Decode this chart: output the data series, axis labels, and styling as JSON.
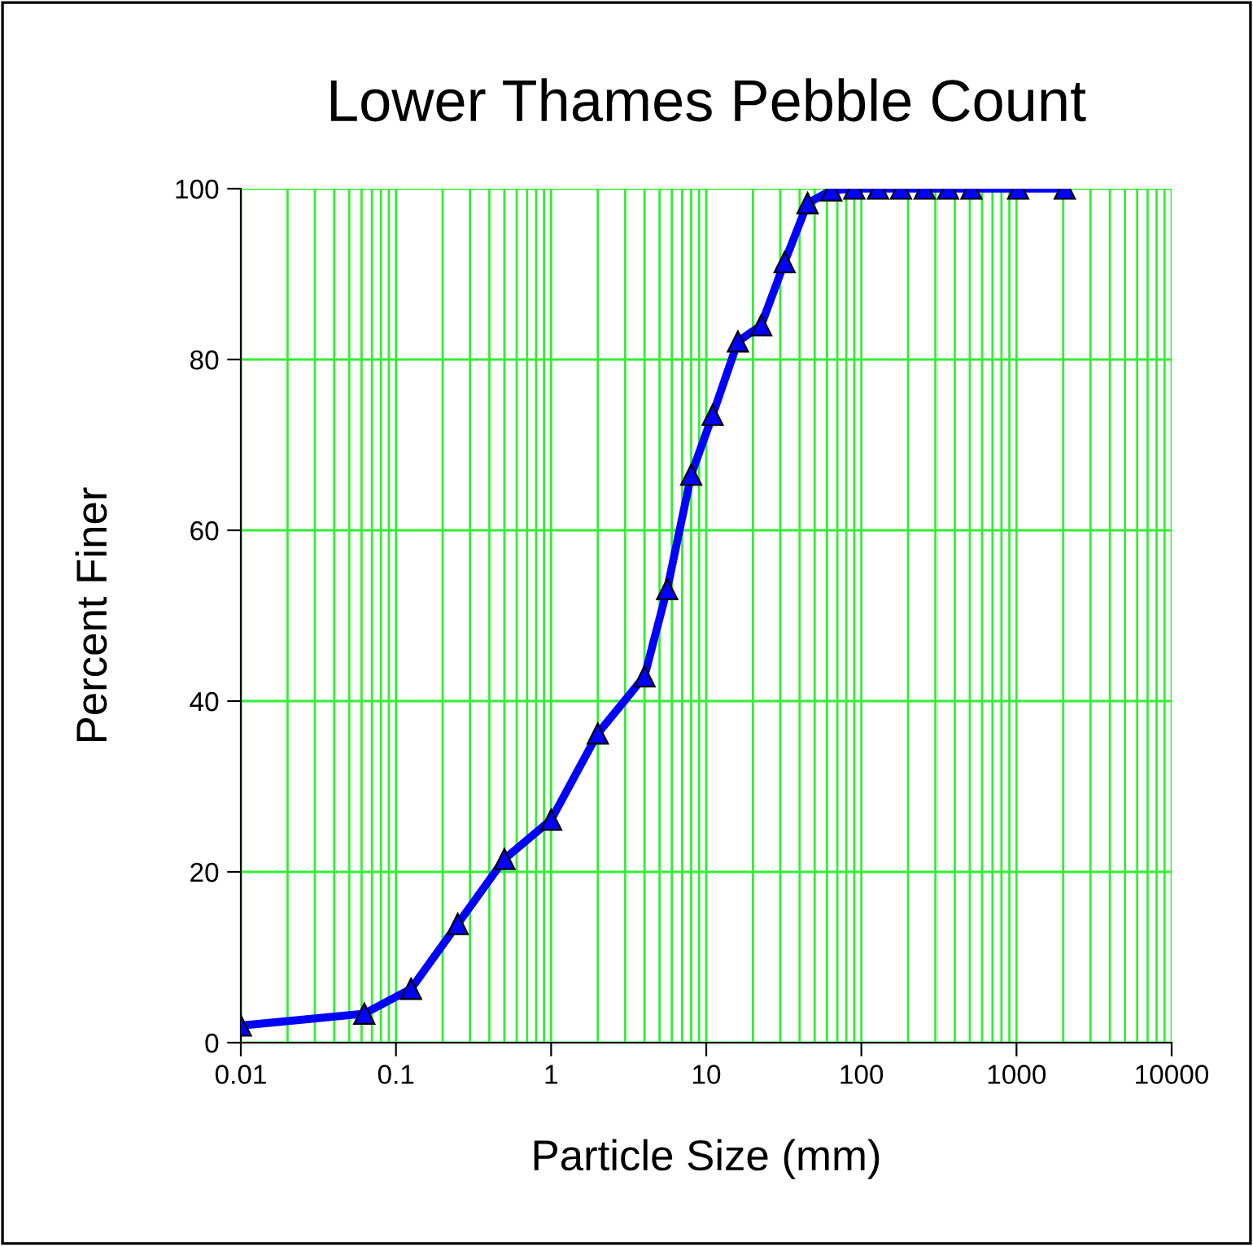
{
  "chart_data": {
    "type": "line",
    "title": "Lower Thames Pebble Count",
    "xlabel": "Particle Size (mm)",
    "ylabel": "Percent Finer",
    "x": [
      0.01,
      0.0625,
      0.125,
      0.25,
      0.5,
      1,
      2,
      4,
      5.6,
      8,
      11,
      16,
      22.6,
      32,
      45,
      64,
      90,
      128,
      180,
      256,
      362,
      512,
      1024,
      2048
    ],
    "series": [
      {
        "color": "#0000ff",
        "values": [
          2.0,
          3.4,
          6.3,
          13.9,
          21.5,
          26.1,
          36.2,
          42.9,
          53.1,
          66.5,
          73.5,
          82.1,
          84.0,
          91.4,
          98.3,
          99.8,
          100,
          100,
          100,
          100,
          100,
          100,
          100,
          100
        ]
      }
    ],
    "log": "x",
    "xlim": [
      0.01,
      10000
    ],
    "xticks": [
      0.01,
      0.1,
      1,
      10,
      100,
      1000,
      10000
    ],
    "ylim": [
      0,
      100
    ],
    "yticks": [
      0,
      20,
      40,
      60,
      80,
      100
    ],
    "grid": true,
    "marker": "triangle",
    "line_style": "solid"
  }
}
